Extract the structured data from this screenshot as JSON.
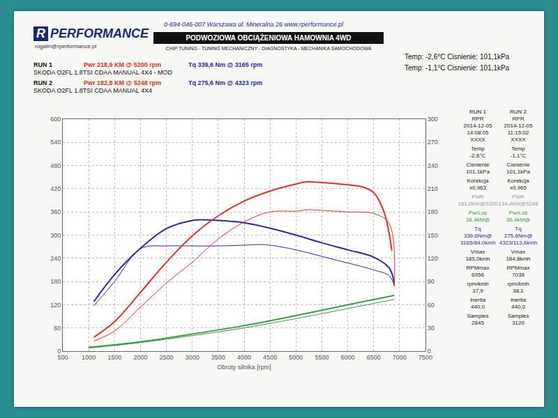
{
  "page": {
    "logo_mark": "R",
    "logo": "PERFORMANCE",
    "email": "rogalin@rperformance.pl",
    "contact": "0-694-046-007 Warszawa ul. Mineralna 26   www.rperformance.pl",
    "banner": "PODWOZIOWA OBCIĄŻENIOWA HAMOWNIA 4WD",
    "services": "CHIP TUNING - TUNING MECHANICZNY - DIAGNOSTYKA - MECHANIKA SAMOCHODOWA",
    "runs": [
      {
        "label": "RUN 1",
        "pwr": "Pwr 218,9 KM @ 5200 rpm",
        "pwr_color": "#e0302a",
        "tq": "Tq 339,6 Nm @ 3165 rpm",
        "tq_color": "#2a2aa0",
        "car": "SKODA O2FL 1.8TSI CDAA MANUAL 4X4 - MOD",
        "conditions": "Temp: -2,6°C   Cisnienie: 101,1kPa"
      },
      {
        "label": "RUN 2",
        "pwr": "Pwr 182,8 KM @ 5248 rpm",
        "pwr_color": "#e0302a",
        "tq": "Tq 275,6 Nm @ 4323 rpm",
        "tq_color": "#2a2aa0",
        "car": "SKODA O2FL 1.8TSI CDAA MANUAL 4X4",
        "conditions": "Temp: -1,1°C   Cisnienie: 101,1kPa"
      }
    ],
    "table": [
      {
        "color": "#222222",
        "rows": [
          [
            "RUN 1",
            "RUN 2"
          ],
          [
            "RPR",
            "RPR"
          ],
          [
            "2014-12-05",
            "2014-12-05"
          ],
          [
            "14:08:05",
            "11:15:02"
          ],
          [
            "XXXX",
            "XXXX"
          ]
        ]
      },
      {
        "color": "#222222",
        "rows": [
          [
            "Temp",
            "Temp"
          ],
          [
            "-2,6°C",
            "-1,1°C"
          ]
        ]
      },
      {
        "color": "#222222",
        "rows": [
          [
            "Cisnienie",
            "Cisnienie"
          ],
          [
            "101,1kPa",
            "101,1kPa"
          ]
        ]
      },
      {
        "color": "#222222",
        "rows": [
          [
            "Korekcja",
            "Korekcja"
          ],
          [
            "x0,963",
            "x0,965"
          ]
        ]
      },
      {
        "color": "#999999",
        "rows": [
          [
            "PWh",
            "PWh"
          ],
          [
            "161,0kW@5200",
            "134,4kW@5248"
          ]
        ]
      },
      {
        "color": "#3a9a4a",
        "rows": [
          [
            "PwrLos",
            "PwrLos"
          ],
          [
            "38,4kM@",
            "36,4kM@"
          ]
        ]
      },
      {
        "color": "#2a2aa0",
        "rows": [
          [
            "Tq",
            "Tq"
          ],
          [
            "339,6Nm@",
            "275,6Nm@"
          ],
          [
            "3165/84,0kmh",
            "4323/113,6kmh"
          ]
        ]
      },
      {
        "color": "#222222",
        "rows": [
          [
            "Vmax",
            "Vmax"
          ],
          [
            "185,0kmh",
            "184,8kmh"
          ]
        ]
      },
      {
        "color": "#222222",
        "rows": [
          [
            "RPMmax",
            "RPMmax"
          ],
          [
            "6956",
            "7038"
          ]
        ]
      },
      {
        "color": "#222222",
        "rows": [
          [
            "rpm/kmh",
            "rpm/kmh"
          ],
          [
            "37,9",
            "38,1"
          ]
        ]
      },
      {
        "color": "#222222",
        "rows": [
          [
            "Inertia",
            "Inertia"
          ],
          [
            "440,0",
            "440,0"
          ]
        ]
      },
      {
        "color": "#222222",
        "rows": [
          [
            "Samples",
            "Samples"
          ],
          [
            "2845",
            "3120"
          ]
        ]
      }
    ]
  },
  "chart_data": {
    "type": "line",
    "x_label": "Obroty silnika [rpm]",
    "xlim": [
      500,
      7500
    ],
    "xticks": [
      500,
      1000,
      1500,
      2000,
      2500,
      3000,
      3500,
      4000,
      4500,
      5000,
      5500,
      6000,
      6500,
      7000,
      7500
    ],
    "ylim": [
      0,
      600
    ],
    "yticks": [
      0,
      60,
      120,
      180,
      240,
      300,
      360,
      420,
      480,
      540,
      600
    ],
    "y2lim": [
      0,
      300
    ],
    "y2ticks": [
      0,
      30,
      60,
      90,
      120,
      150,
      180,
      210,
      240,
      270,
      300
    ],
    "grid": true,
    "series": [
      {
        "run": "RUN 1",
        "color": "#e0302a",
        "axis": "y2",
        "x": [
          1100,
          1500,
          2000,
          2500,
          3000,
          3500,
          4000,
          4500,
          5000,
          5200,
          5500,
          6000,
          6300,
          6500,
          6700,
          6850
        ],
        "values": [
          18,
          38,
          76,
          115,
          149,
          175,
          194,
          207,
          216,
          218.9,
          218,
          215,
          212,
          205,
          180,
          130
        ]
      },
      {
        "run": "RUN 2",
        "color": "#e0302a",
        "axis": "y2",
        "x": [
          1100,
          1500,
          2000,
          2500,
          3000,
          3500,
          4000,
          4500,
          5000,
          5248,
          5500,
          6000,
          6500,
          6800,
          6900
        ],
        "values": [
          13,
          26,
          57,
          88,
          115,
          145,
          167,
          180,
          181,
          182.8,
          182,
          180,
          178,
          165,
          84
        ]
      },
      {
        "run": "RUN 1",
        "color": "#2a2aa0",
        "axis": "y",
        "x": [
          1100,
          1500,
          2000,
          2500,
          3000,
          3165,
          3500,
          4000,
          4500,
          5000,
          5500,
          6000,
          6500,
          6800,
          6900
        ],
        "values": [
          128,
          198,
          266,
          317,
          338,
          339.6,
          338,
          332,
          318,
          300,
          280,
          262,
          243,
          215,
          175
        ]
      },
      {
        "run": "RUN 2",
        "color": "#2a2aa0",
        "axis": "y",
        "x": [
          1100,
          1500,
          2000,
          2500,
          3000,
          3500,
          4000,
          4323,
          4500,
          5000,
          5500,
          6000,
          6500,
          6800,
          6900
        ],
        "values": [
          117,
          180,
          265,
          272,
          272,
          272,
          274,
          275.6,
          274,
          262,
          245,
          228,
          210,
          195,
          168
        ]
      },
      {
        "run": "RUN 1",
        "color": "#3a9a4a",
        "axis": "y2",
        "x": [
          1000,
          2000,
          3000,
          4000,
          5000,
          6000,
          6900
        ],
        "values": [
          5,
          12,
          22,
          33,
          46,
          60,
          72
        ]
      },
      {
        "run": "RUN 2",
        "color": "#3a9a4a",
        "axis": "y2",
        "x": [
          1000,
          2000,
          3000,
          4000,
          5000,
          6000,
          6900
        ],
        "values": [
          4,
          11,
          20,
          30,
          42,
          55,
          67
        ]
      }
    ]
  }
}
